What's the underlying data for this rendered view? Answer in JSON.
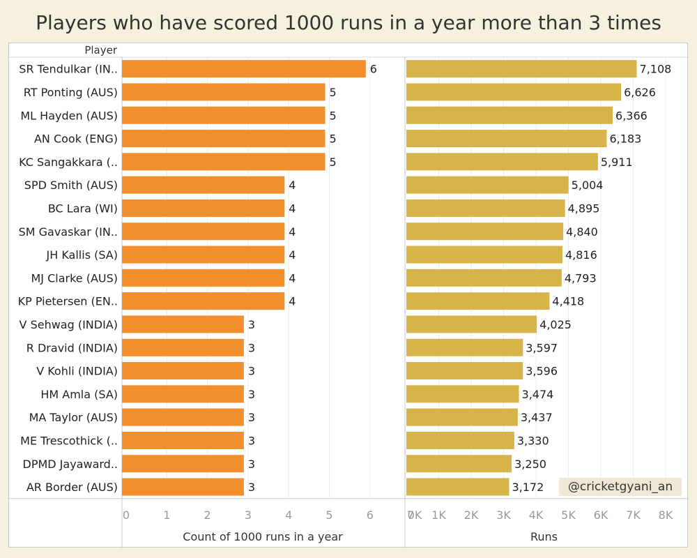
{
  "title": "Players who have scored 1000 runs in a year more than 3 times",
  "row_header": "Player",
  "credit": "@cricketgyani_an",
  "colors": {
    "count_bar": "#f28e2b",
    "runs_bar": "#d6b44a",
    "background": "#f6f0df"
  },
  "chart_data": [
    {
      "type": "bar",
      "orientation": "horizontal",
      "categories": [
        "SR Tendulkar (IN..",
        "RT Ponting (AUS)",
        "ML Hayden (AUS)",
        "AN Cook (ENG)",
        "KC Sangakkara (..",
        "SPD Smith (AUS)",
        "BC Lara (WI)",
        "SM Gavaskar (IN..",
        "JH Kallis (SA)",
        "MJ Clarke (AUS)",
        "KP Pietersen (EN..",
        "V Sehwag (INDIA)",
        "R Dravid (INDIA)",
        "V Kohli (INDIA)",
        "HM Amla (SA)",
        "MA Taylor (AUS)",
        "ME Trescothick (..",
        "DPMD Jayaward..",
        "AR Border (AUS)"
      ],
      "values": [
        6,
        5,
        5,
        5,
        5,
        4,
        4,
        4,
        4,
        4,
        4,
        3,
        3,
        3,
        3,
        3,
        3,
        3,
        3
      ],
      "data_labels": [
        "6",
        "5",
        "5",
        "5",
        "5",
        "4",
        "4",
        "4",
        "4",
        "4",
        "4",
        "3",
        "3",
        "3",
        "3",
        "3",
        "3",
        "3",
        "3"
      ],
      "xlabel": "Count of 1000 runs in a year",
      "xlim": [
        0,
        7
      ],
      "ticks": [
        0,
        1,
        2,
        3,
        4,
        5,
        6,
        7
      ],
      "tick_labels": [
        "0",
        "1",
        "2",
        "3",
        "4",
        "5",
        "6",
        "7"
      ],
      "grid": true
    },
    {
      "type": "bar",
      "orientation": "horizontal",
      "categories": [
        "SR Tendulkar (IN..",
        "RT Ponting (AUS)",
        "ML Hayden (AUS)",
        "AN Cook (ENG)",
        "KC Sangakkara (..",
        "SPD Smith (AUS)",
        "BC Lara (WI)",
        "SM Gavaskar (IN..",
        "JH Kallis (SA)",
        "MJ Clarke (AUS)",
        "KP Pietersen (EN..",
        "V Sehwag (INDIA)",
        "R Dravid (INDIA)",
        "V Kohli (INDIA)",
        "HM Amla (SA)",
        "MA Taylor (AUS)",
        "ME Trescothick (..",
        "DPMD Jayaward..",
        "AR Border (AUS)"
      ],
      "values": [
        7108,
        6626,
        6366,
        6183,
        5911,
        5004,
        4895,
        4840,
        4816,
        4793,
        4418,
        4025,
        3597,
        3596,
        3474,
        3437,
        3330,
        3250,
        3172
      ],
      "data_labels": [
        "7,108",
        "6,626",
        "6,366",
        "6,183",
        "5,911",
        "5,004",
        "4,895",
        "4,840",
        "4,816",
        "4,793",
        "4,418",
        "4,025",
        "3,597",
        "3,596",
        "3,474",
        "3,437",
        "3,330",
        "3,250",
        "3,172"
      ],
      "xlabel": "Runs",
      "xlim": [
        0,
        8000
      ],
      "ticks": [
        0,
        1000,
        2000,
        3000,
        4000,
        5000,
        6000,
        7000,
        8000
      ],
      "tick_labels": [
        "0K",
        "1K",
        "2K",
        "3K",
        "4K",
        "5K",
        "6K",
        "7K",
        "8K"
      ],
      "grid": true
    }
  ]
}
